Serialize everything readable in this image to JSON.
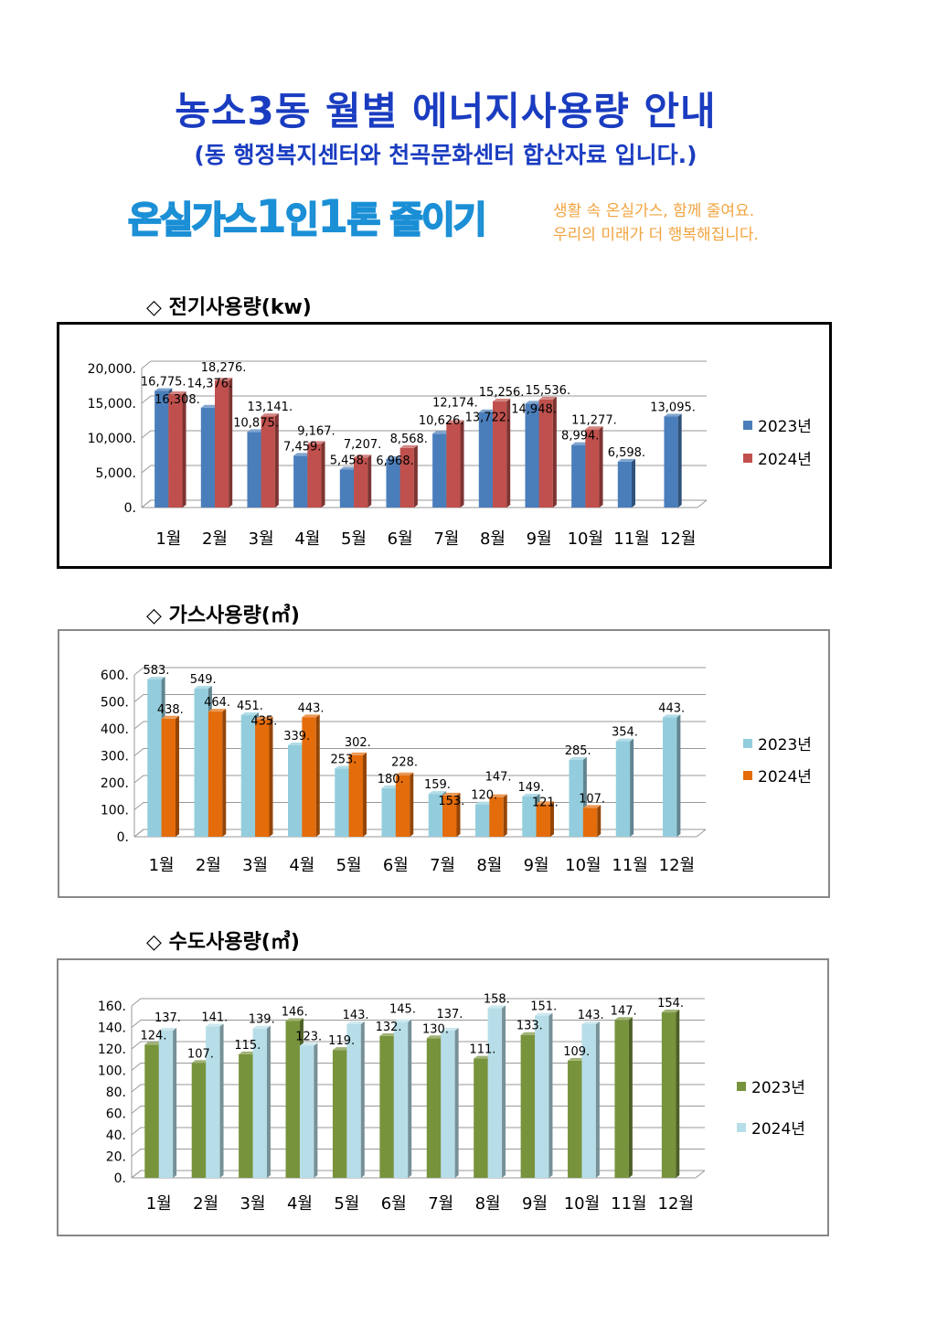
{
  "header": {
    "title": "농소3동 월별 에너지사용량 안내",
    "subtitle": "(동 행정복지센터와 천곡문화센터 합산자료 입니다.)"
  },
  "banner": {
    "main_a": "온실가스",
    "main_1a": "1",
    "main_b": "인",
    "main_1b": "1",
    "main_c": "톤 줄이기",
    "sub_line1": "생활 속 온실가스, 함께 줄여요.",
    "sub_line2": "우리의 미래가 더 행복해집니다."
  },
  "sections": [
    {
      "title": "◇ 전기사용량(kw)"
    },
    {
      "title": "◇ 가스사용량(㎥)"
    },
    {
      "title": "◇ 수도사용량(㎥)"
    }
  ],
  "chart_data": [
    {
      "type": "bar",
      "title": "전기사용량(kw)",
      "categories": [
        "1월",
        "2월",
        "3월",
        "4월",
        "5월",
        "6월",
        "7월",
        "8월",
        "9월",
        "10월",
        "11월",
        "12월"
      ],
      "ylim": [
        0,
        20000
      ],
      "yticks": [
        0,
        5000,
        10000,
        15000,
        20000
      ],
      "grid": true,
      "legend": "right",
      "series": [
        {
          "name": "2023년",
          "color": "#4a7ebb",
          "values": [
            16775,
            14376,
            10875,
            7459,
            5458,
            6968,
            10626,
            13722,
            14948,
            8994,
            6598,
            13095
          ]
        },
        {
          "name": "2024년",
          "color": "#c0504d",
          "values": [
            16308,
            18276,
            13141,
            9167,
            7207,
            8568,
            12174,
            15256,
            15536,
            11277,
            null,
            null
          ]
        }
      ]
    },
    {
      "type": "bar",
      "title": "가스사용량(㎥)",
      "categories": [
        "1월",
        "2월",
        "3월",
        "4월",
        "5월",
        "6월",
        "7월",
        "8월",
        "9월",
        "10월",
        "11월",
        "12월"
      ],
      "ylim": [
        0,
        600
      ],
      "yticks": [
        0,
        100,
        200,
        300,
        400,
        500,
        600
      ],
      "grid": true,
      "legend": "right",
      "series": [
        {
          "name": "2023년",
          "color": "#93cddd",
          "values": [
            583,
            549,
            451,
            339,
            253,
            180,
            159,
            120,
            149,
            285,
            354,
            443
          ]
        },
        {
          "name": "2024년",
          "color": "#e46c0a",
          "values": [
            438,
            464,
            435,
            443,
            302,
            228,
            153,
            147,
            121,
            107,
            null,
            null
          ]
        }
      ]
    },
    {
      "type": "bar",
      "title": "수도사용량(㎥)",
      "categories": [
        "1월",
        "2월",
        "3월",
        "4월",
        "5월",
        "6월",
        "7월",
        "8월",
        "9월",
        "10월",
        "11월",
        "12월"
      ],
      "ylim": [
        0,
        160
      ],
      "yticks": [
        0,
        20,
        40,
        60,
        80,
        100,
        120,
        140,
        160
      ],
      "grid": true,
      "legend": "right",
      "series": [
        {
          "name": "2023년",
          "color": "#77933c",
          "values": [
            124,
            107,
            115,
            146,
            119,
            132,
            130,
            111,
            133,
            109,
            147,
            154
          ]
        },
        {
          "name": "2024년",
          "color": "#b7dee8",
          "values": [
            137,
            141,
            139,
            123,
            143,
            145,
            137,
            158,
            151,
            143,
            null,
            null
          ]
        }
      ]
    }
  ]
}
